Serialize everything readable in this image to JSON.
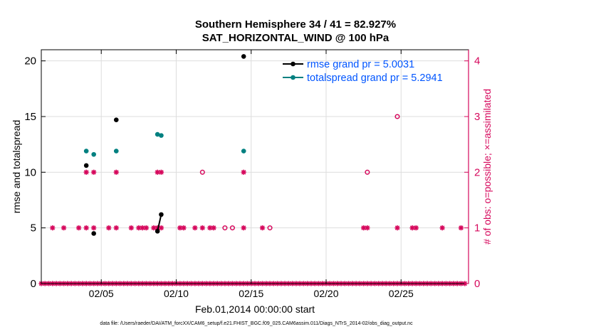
{
  "figure": {
    "title_line1": "Southern Hemisphere 34 / 41 = 82.927%",
    "title_line2": "SAT_HORIZONTAL_WIND @ 100 hPa",
    "footer": "data file: /Users/raeder/DAI/ATM_forcXX/CAM6_setup/f.e21.FHIST_BGC.f09_025.CAM6assim.011/Diags_NTrS_2014-02/obs_diag_output.nc"
  },
  "chart_data": {
    "type": "scatter",
    "xlabel": "Feb.01,2014 00:00:00 start",
    "ylabel_left": "rmse and totalspread",
    "ylabel_right": "# of obs: o=possible; ×=assimilated",
    "x_range": [
      1,
      29.5
    ],
    "x_ticks": [
      5,
      10,
      15,
      20,
      25
    ],
    "x_tick_labels": [
      "02/05",
      "02/10",
      "02/15",
      "02/20",
      "02/25"
    ],
    "ylim_left": [
      0,
      21
    ],
    "yticks_left": [
      0,
      5,
      10,
      15,
      20
    ],
    "ylim_right": [
      0,
      4.2
    ],
    "yticks_right": [
      0,
      1,
      2,
      3,
      4
    ],
    "grid": true,
    "legend_position": "top-right",
    "colors": {
      "rmse": "#000000",
      "totalspread": "#008080",
      "obs": "#d6085c",
      "legend_text": "#0055ff",
      "grid": "#dddddd"
    },
    "series": [
      {
        "name": "rmse grand pr = 5.0031",
        "x": [
          4.0,
          4.5,
          6.0,
          8.75,
          9.0,
          14.5
        ],
        "y": [
          10.6,
          4.5,
          14.7,
          4.7,
          6.2,
          20.4
        ],
        "connected_pairs": [
          [
            8.75,
            9.0
          ]
        ]
      },
      {
        "name": "totalspread grand pr = 5.2941",
        "x": [
          4.0,
          4.5,
          6.0,
          8.75,
          9.0,
          14.5
        ],
        "y": [
          11.9,
          11.6,
          11.9,
          13.4,
          13.3,
          11.9
        ],
        "connected_pairs": [
          [
            8.75,
            9.0
          ]
        ]
      }
    ],
    "obs_assimilated": {
      "x": [
        1.0,
        1.25,
        1.5,
        1.75,
        2.0,
        2.25,
        2.5,
        2.75,
        3.0,
        3.25,
        3.5,
        3.75,
        4.0,
        4.25,
        4.5,
        4.75,
        5.0,
        5.25,
        5.5,
        5.75,
        6.0,
        6.25,
        6.5,
        6.75,
        7.0,
        7.25,
        7.5,
        7.75,
        8.0,
        8.25,
        8.5,
        8.75,
        9.0,
        9.25,
        9.5,
        9.75,
        10.0,
        10.25,
        10.5,
        10.75,
        11.0,
        11.25,
        11.5,
        11.75,
        12.0,
        12.25,
        12.5,
        12.75,
        13.0,
        13.25,
        13.5,
        13.75,
        14.0,
        14.25,
        14.5,
        14.75,
        15.0,
        15.25,
        15.5,
        15.75,
        16.0,
        16.25,
        16.5,
        16.75,
        17.0,
        17.25,
        17.5,
        17.75,
        18.0,
        18.25,
        18.5,
        18.75,
        19.0,
        19.25,
        19.5,
        19.75,
        20.0,
        20.25,
        20.5,
        20.75,
        21.0,
        21.25,
        21.5,
        21.75,
        22.0,
        22.25,
        22.5,
        22.75,
        23.0,
        23.25,
        23.5,
        23.75,
        24.0,
        24.25,
        24.5,
        24.75,
        25.0,
        25.25,
        25.5,
        25.75,
        26.0,
        26.25,
        26.5,
        26.75,
        27.0,
        27.25,
        27.5,
        27.75,
        28.0,
        28.25,
        28.5,
        28.75,
        29.0,
        29.25,
        1.75,
        2.5,
        3.5,
        4.0,
        4.5,
        5.5,
        6.0,
        7.0,
        7.5,
        7.75,
        8.0,
        8.5,
        8.75,
        9.0,
        10.25,
        10.5,
        11.25,
        11.75,
        12.25,
        12.5,
        14.5,
        15.75,
        22.5,
        22.75,
        24.75,
        25.75,
        26.0,
        27.75,
        29.0,
        4.0,
        4.5,
        6.0,
        8.75,
        9.0,
        14.5
      ],
      "y": [
        0,
        0,
        0,
        0,
        0,
        0,
        0,
        0,
        0,
        0,
        0,
        0,
        0,
        0,
        0,
        0,
        0,
        0,
        0,
        0,
        0,
        0,
        0,
        0,
        0,
        0,
        0,
        0,
        0,
        0,
        0,
        0,
        0,
        0,
        0,
        0,
        0,
        0,
        0,
        0,
        0,
        0,
        0,
        0,
        0,
        0,
        0,
        0,
        0,
        0,
        0,
        0,
        0,
        0,
        0,
        0,
        0,
        0,
        0,
        0,
        0,
        0,
        0,
        0,
        0,
        0,
        0,
        0,
        0,
        0,
        0,
        0,
        0,
        0,
        0,
        0,
        0,
        0,
        0,
        0,
        0,
        0,
        0,
        0,
        0,
        0,
        0,
        0,
        0,
        0,
        0,
        0,
        0,
        0,
        0,
        0,
        0,
        0,
        0,
        0,
        0,
        0,
        0,
        0,
        0,
        0,
        0,
        0,
        0,
        0,
        0,
        0,
        0,
        0,
        1,
        1,
        1,
        1,
        1,
        1,
        1,
        1,
        1,
        1,
        1,
        1,
        1,
        1,
        1,
        1,
        1,
        1,
        1,
        1,
        1,
        1,
        1,
        1,
        1,
        1,
        1,
        1,
        1,
        2,
        2,
        2,
        2,
        2,
        2
      ]
    },
    "obs_possible": {
      "x": [
        11.75,
        13.25,
        13.75,
        16.25,
        22.75,
        24.75
      ],
      "y": [
        2,
        1,
        1,
        1,
        2,
        3
      ]
    }
  }
}
